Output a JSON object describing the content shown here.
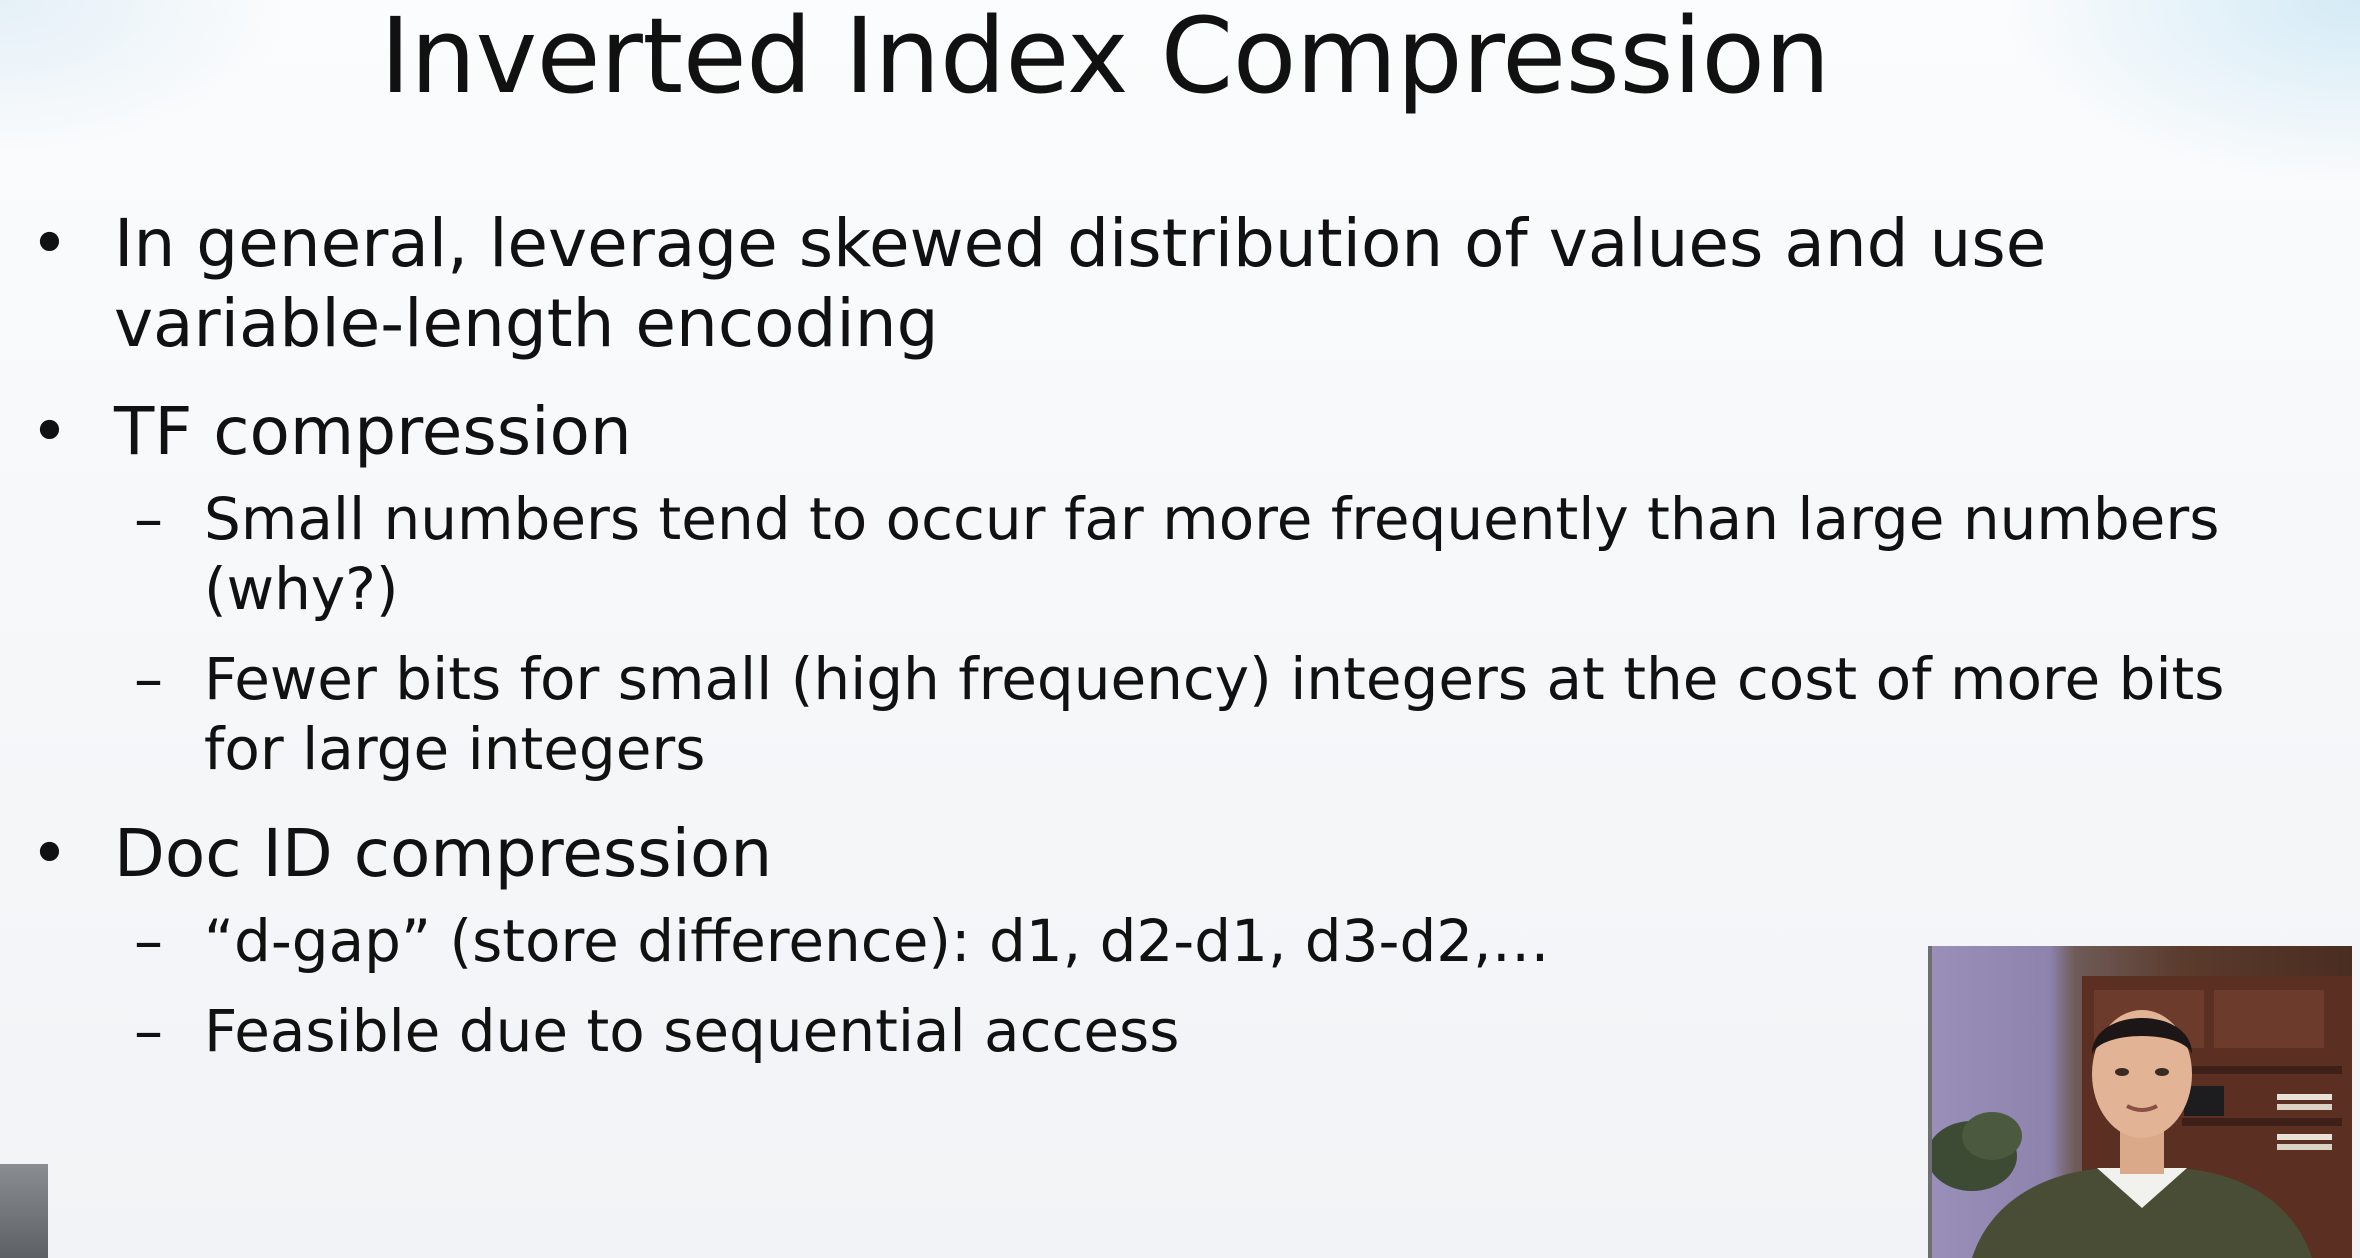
{
  "slide": {
    "title": "Inverted Index Compression",
    "bullets": [
      {
        "text": "In general, leverage skewed distribution of values and use variable-length encoding",
        "line1": "In general, leverage skewed distribution of values and use",
        "line2": "variable-length encoding"
      },
      {
        "text": "TF compression",
        "subs": [
          {
            "line1": "Small numbers tend to occur far more frequently than large numbers",
            "line2": "(why?)"
          },
          {
            "line1": "Fewer bits for small (high frequency) integers at the cost of more bits",
            "line2": "for large integers"
          }
        ]
      },
      {
        "text": "Doc ID compression",
        "subs": [
          {
            "line1": "“d-gap” (store difference): d1, d2-d1, d3-d2,…"
          },
          {
            "line1": "Feasible due to sequential access"
          }
        ]
      }
    ],
    "bullet_symbol": "•",
    "dash_symbol": "–"
  },
  "colors": {
    "text": "#111111",
    "background": "#f5f7f9"
  }
}
